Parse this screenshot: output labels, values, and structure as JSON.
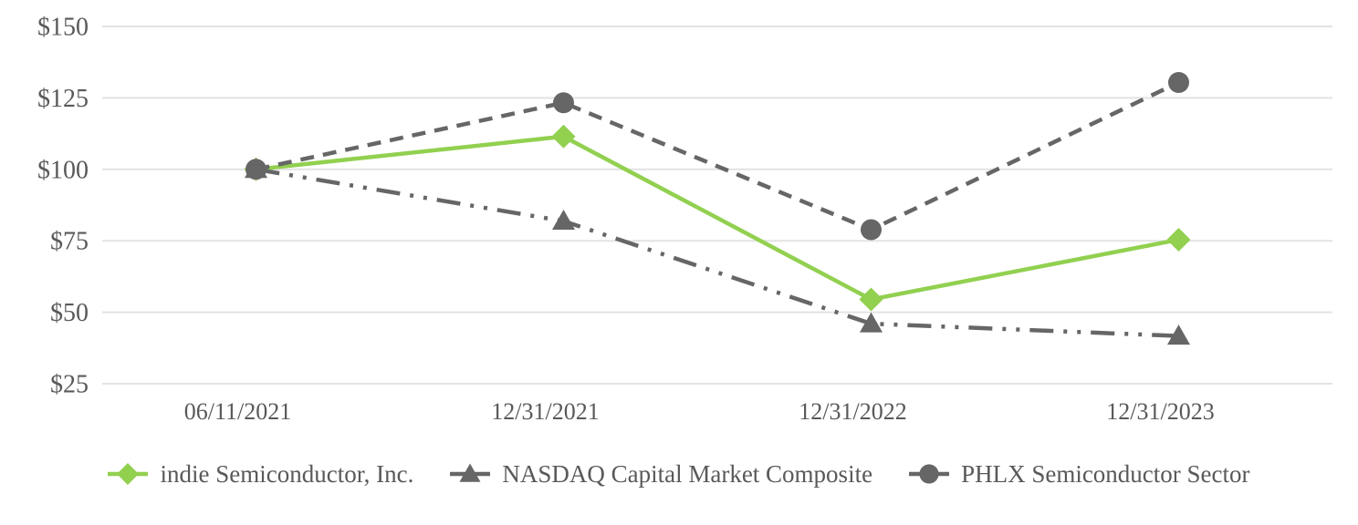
{
  "chart_data": {
    "type": "line",
    "title": "",
    "categories": [
      "06/11/2021",
      "12/31/2021",
      "12/31/2022",
      "12/31/2023"
    ],
    "y_axis": {
      "tick_values": [
        150,
        125,
        100,
        75,
        50,
        25
      ],
      "tick_labels": [
        "$150",
        "$125",
        "$100",
        "$75",
        "$50",
        "$25"
      ],
      "range": [
        25,
        150
      ],
      "unit_prefix": "$"
    },
    "series": [
      {
        "name": "indie Semiconductor, Inc.",
        "marker": "diamond",
        "line_style": "solid",
        "color": "#92d050",
        "values": [
          100,
          111.5,
          54.5,
          75.4
        ]
      },
      {
        "name": "NASDAQ Capital Market Composite",
        "marker": "triangle",
        "line_style": "dash-dot-dot",
        "color": "#666666",
        "values": [
          100,
          81.9,
          46.0,
          41.7
        ]
      },
      {
        "name": "PHLX Semiconductor Sector",
        "marker": "circle",
        "line_style": "dashed",
        "color": "#666666",
        "values": [
          100,
          123.3,
          78.9,
          130.4
        ]
      }
    ],
    "legend_position": "bottom",
    "grid": "horizontal",
    "gridline_color": "#e3e3e3",
    "text_color": "#595959"
  }
}
